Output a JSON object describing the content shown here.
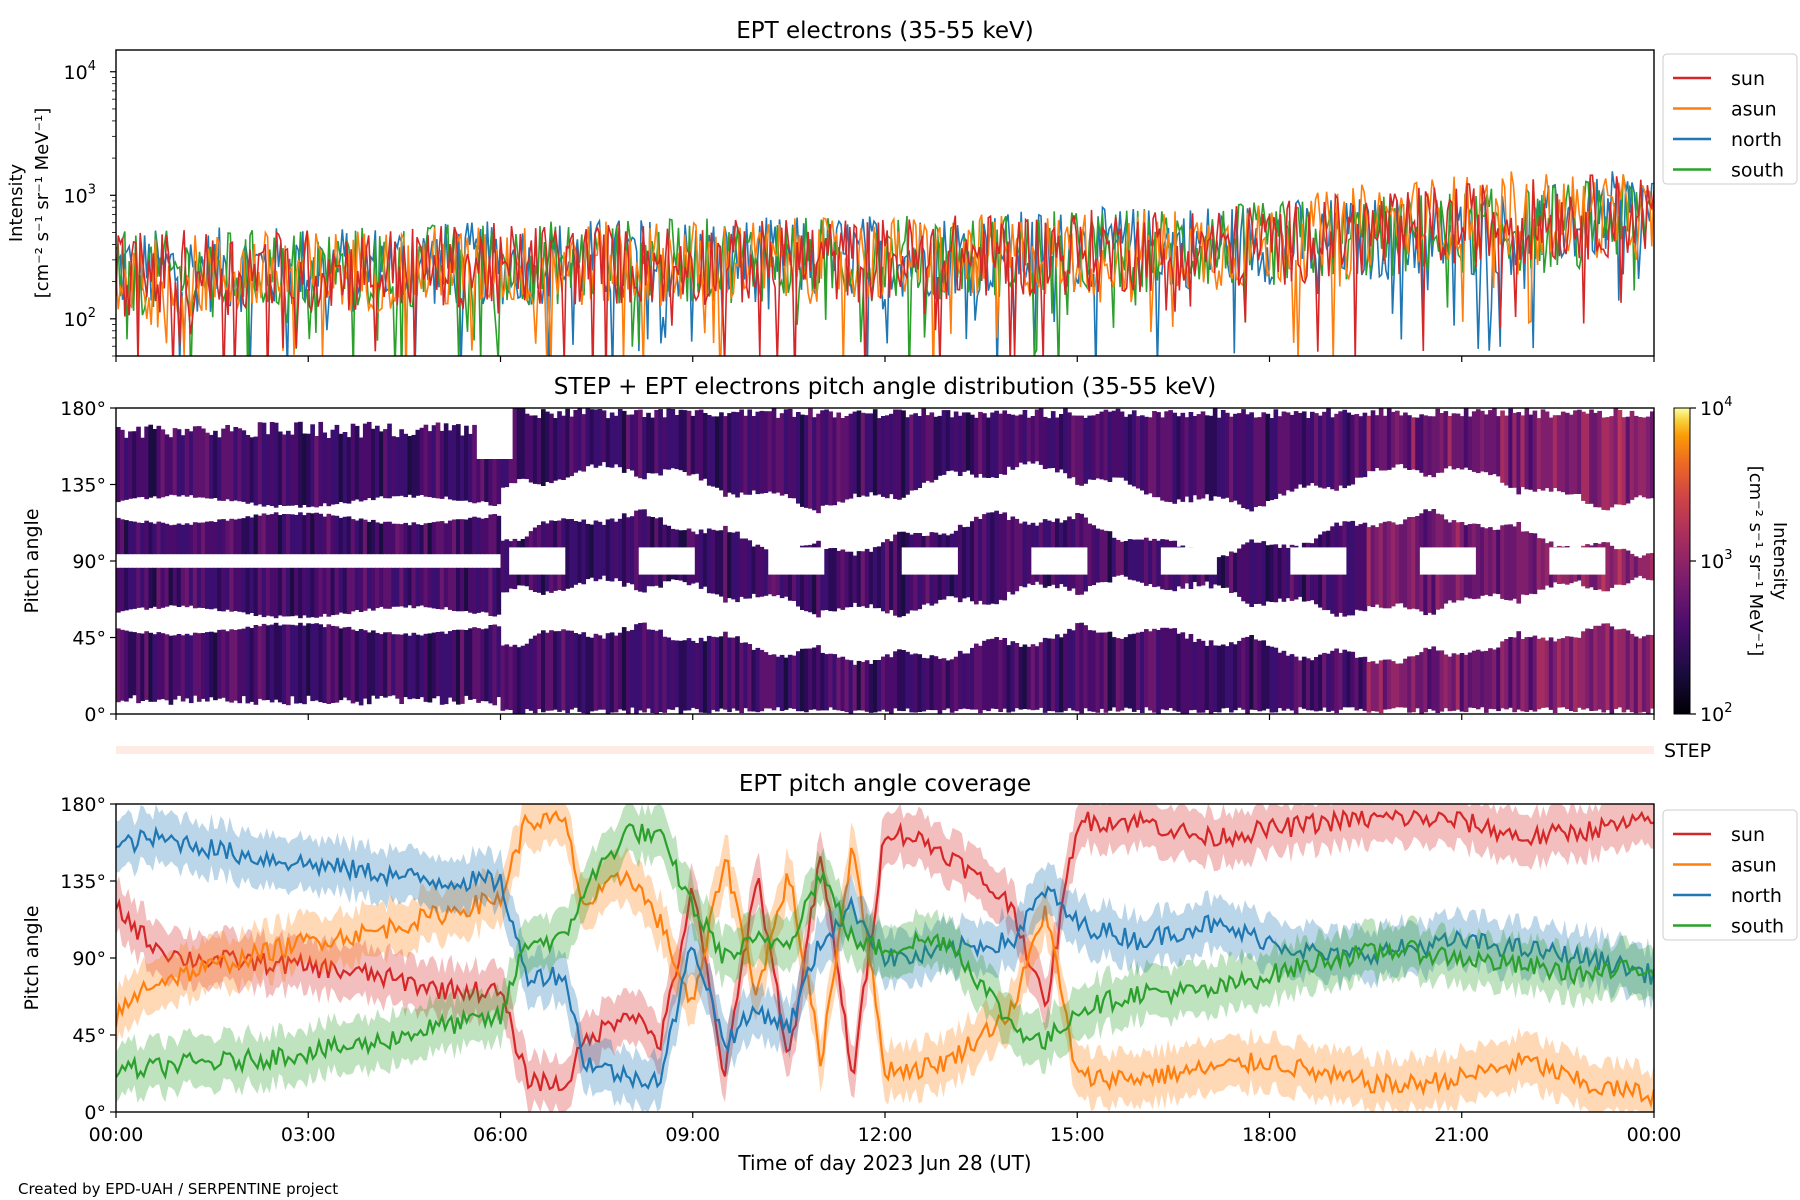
{
  "figure": {
    "credit": "Created by EPD-UAH / SERPENTINE project",
    "xlabel": "Time of day 2023 Jun 28 (UT)",
    "xticks": [
      "00:00",
      "03:00",
      "06:00",
      "09:00",
      "12:00",
      "15:00",
      "18:00",
      "21:00",
      "00:00"
    ]
  },
  "colors": {
    "sun": "#d62728",
    "asun": "#ff7f0e",
    "north": "#1f77b4",
    "south": "#2ca02c"
  },
  "chart_data": [
    {
      "type": "line",
      "title": "EPT electrons (35-55 keV)",
      "ylabel_line1": "Intensity",
      "ylabel_line2": "[cm⁻² s⁻¹ sr⁻¹ MeV⁻¹]",
      "yscale": "log",
      "ylim": [
        50,
        15000
      ],
      "yticks": [
        {
          "exp": "2",
          "value": 100
        },
        {
          "exp": "3",
          "value": 1000
        },
        {
          "exp": "4",
          "value": 10000
        }
      ],
      "xlim_hours": [
        0,
        24
      ],
      "legend": {
        "placement": "right-top",
        "entries": [
          "sun",
          "asun",
          "north",
          "south"
        ]
      },
      "series": [
        {
          "name": "sun",
          "key": "sun",
          "x_hours": [
            0,
            2,
            4,
            6,
            8,
            10,
            12,
            14,
            16,
            18,
            20,
            22,
            24
          ],
          "values": [
            230,
            240,
            250,
            270,
            280,
            290,
            300,
            330,
            360,
            400,
            520,
            620,
            720
          ]
        },
        {
          "name": "asun",
          "key": "asun",
          "x_hours": [
            0,
            2,
            4,
            6,
            8,
            10,
            12,
            14,
            16,
            18,
            20,
            22,
            24
          ],
          "values": [
            210,
            230,
            250,
            260,
            280,
            290,
            300,
            320,
            350,
            390,
            620,
            720,
            650
          ]
        },
        {
          "name": "north",
          "key": "north",
          "x_hours": [
            0,
            2,
            4,
            6,
            8,
            10,
            12,
            14,
            16,
            18,
            20,
            22,
            24
          ],
          "values": [
            240,
            250,
            270,
            280,
            300,
            300,
            320,
            340,
            370,
            420,
            450,
            500,
            800
          ]
        },
        {
          "name": "south",
          "key": "south",
          "x_hours": [
            0,
            2,
            4,
            6,
            8,
            10,
            12,
            14,
            16,
            18,
            20,
            22,
            24
          ],
          "values": [
            230,
            240,
            260,
            280,
            290,
            300,
            310,
            330,
            360,
            400,
            470,
            530,
            700
          ]
        }
      ]
    },
    {
      "type": "heatmap",
      "title": "STEP + EPT electrons pitch angle distribution (35-55 keV)",
      "ylabel": "Pitch angle",
      "ylim": [
        0,
        180
      ],
      "yticks": [
        "0°",
        "45°",
        "90°",
        "135°",
        "180°"
      ],
      "colorbar": {
        "label_line1": "Intensity",
        "label_line2": "[cm⁻² s⁻¹ sr⁻¹ MeV⁻¹]",
        "scale": "log",
        "range": [
          100,
          10000
        ],
        "ticks": [
          {
            "exp": "2",
            "value": 100
          },
          {
            "exp": "3",
            "value": 1000
          },
          {
            "exp": "4",
            "value": 10000
          }
        ],
        "colormap": "inferno"
      }
    },
    {
      "type": "bar",
      "label": "STEP",
      "note": "thin STEP coverage strip"
    },
    {
      "type": "area",
      "title": "EPT pitch angle coverage",
      "ylabel": "Pitch angle",
      "ylim": [
        0,
        180
      ],
      "yticks": [
        "0°",
        "45°",
        "90°",
        "135°",
        "180°"
      ],
      "xlim_hours": [
        0,
        24
      ],
      "legend": {
        "placement": "right-top",
        "entries": [
          "sun",
          "asun",
          "north",
          "south"
        ]
      },
      "band_halfwidth_deg": 15,
      "series": [
        {
          "name": "sun",
          "key": "sun",
          "x_hours": [
            0,
            0.5,
            1,
            2,
            3,
            4,
            5,
            6,
            6.4,
            7,
            7.3,
            8,
            8.5,
            9,
            9.5,
            10,
            10.5,
            11,
            11.5,
            12,
            12.5,
            13,
            14,
            14.5,
            15,
            16,
            17,
            18,
            19,
            20,
            21,
            22,
            23,
            24
          ],
          "values": [
            120,
            100,
            90,
            88,
            85,
            80,
            72,
            70,
            20,
            15,
            40,
            60,
            40,
            130,
            20,
            140,
            30,
            150,
            20,
            165,
            160,
            150,
            120,
            60,
            170,
            170,
            160,
            165,
            170,
            172,
            170,
            160,
            165,
            170
          ]
        },
        {
          "name": "asun",
          "key": "asun",
          "x_hours": [
            0,
            0.5,
            1,
            2,
            3,
            4,
            5,
            6,
            6.4,
            7,
            7.3,
            8,
            8.5,
            9,
            9.5,
            10,
            10.5,
            11,
            11.5,
            12,
            12.5,
            13,
            14,
            14.5,
            15,
            16,
            17,
            18,
            19,
            20,
            21,
            22,
            23,
            24
          ],
          "values": [
            55,
            75,
            80,
            90,
            100,
            105,
            115,
            125,
            170,
            170,
            120,
            140,
            110,
            60,
            150,
            70,
            140,
            30,
            160,
            25,
            25,
            30,
            60,
            120,
            20,
            20,
            25,
            30,
            20,
            15,
            20,
            30,
            15,
            10
          ]
        },
        {
          "name": "north",
          "key": "north",
          "x_hours": [
            0,
            0.5,
            1,
            2,
            3,
            4,
            5,
            6,
            6.4,
            7,
            7.3,
            8,
            8.5,
            9,
            9.5,
            10,
            10.5,
            11,
            11.5,
            12,
            12.5,
            13,
            14,
            14.5,
            15,
            16,
            17,
            18,
            19,
            20,
            21,
            22,
            23,
            24
          ],
          "values": [
            155,
            160,
            158,
            150,
            145,
            140,
            135,
            135,
            80,
            80,
            30,
            20,
            20,
            100,
            40,
            60,
            50,
            100,
            120,
            90,
            90,
            95,
            100,
            130,
            110,
            100,
            110,
            100,
            90,
            95,
            100,
            95,
            90,
            80
          ]
        },
        {
          "name": "south",
          "key": "south",
          "x_hours": [
            0,
            0.5,
            1,
            2,
            3,
            4,
            5,
            6,
            6.4,
            7,
            7.3,
            8,
            8.5,
            9,
            9.5,
            10,
            10.5,
            11,
            11.5,
            12,
            12.5,
            13,
            14,
            14.5,
            15,
            16,
            17,
            18,
            19,
            20,
            21,
            22,
            23,
            24
          ],
          "values": [
            25,
            25,
            28,
            30,
            35,
            40,
            50,
            55,
            100,
            100,
            130,
            165,
            160,
            120,
            90,
            100,
            100,
            140,
            100,
            95,
            100,
            100,
            50,
            40,
            60,
            70,
            70,
            80,
            90,
            95,
            90,
            85,
            80,
            85
          ]
        }
      ]
    }
  ]
}
